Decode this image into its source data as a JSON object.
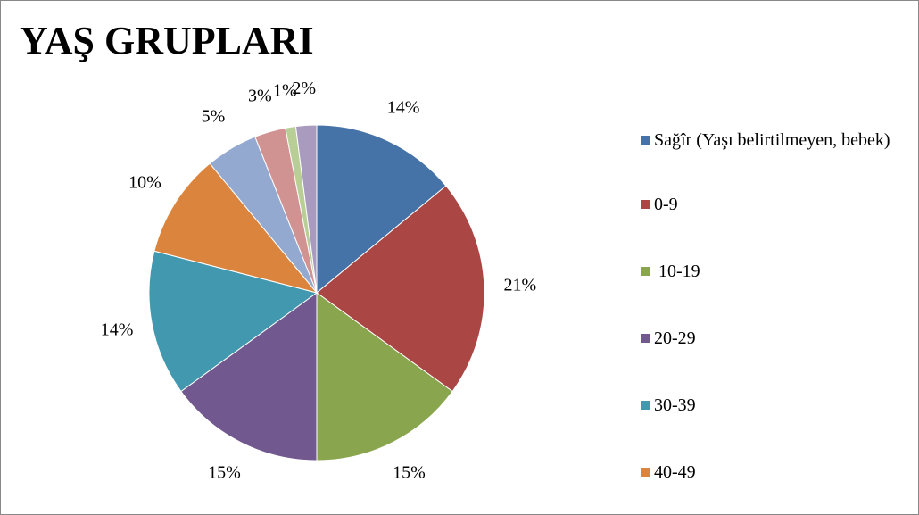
{
  "chart_data": {
    "type": "pie",
    "title": "YAŞ GRUPLARI",
    "categories": [
      "Sağîr (Yaşı belirtilmeyen, bebek)",
      "0-9",
      " 10-19",
      "20-29",
      "30-39",
      "40-49",
      null,
      null,
      null,
      null
    ],
    "values": [
      14,
      21,
      15,
      15,
      14,
      10,
      5,
      3,
      1,
      2
    ],
    "value_labels": [
      "14%",
      "21%",
      "15%",
      "15%",
      "14%",
      "10%",
      "5%",
      "3%",
      "1%",
      "2%"
    ],
    "colors": [
      "#4572a7",
      "#aa4643",
      "#89a54e",
      "#71588f",
      "#4198af",
      "#db843d",
      "#93a9cf",
      "#d19392",
      "#b9cd96",
      "#a99bbd"
    ],
    "legend": "right"
  }
}
